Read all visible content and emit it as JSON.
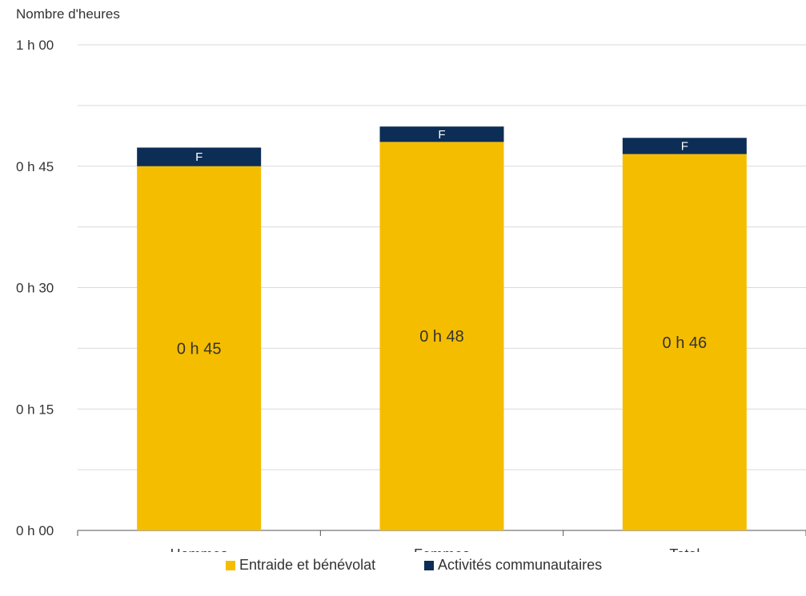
{
  "chart_data": {
    "type": "bar",
    "stacked": true,
    "ylabel": "Nombre d'heures",
    "xlabel": "",
    "categories": [
      "Hommes",
      "Femmes",
      "Total"
    ],
    "yticks": [
      {
        "value": 0,
        "label": "0 h 00"
      },
      {
        "value": 15,
        "label": "0 h 15"
      },
      {
        "value": 30,
        "label": "0 h 30"
      },
      {
        "value": 45,
        "label": "0 h 45"
      },
      {
        "value": 60,
        "label": "1 h 00"
      }
    ],
    "ylim": [
      0,
      60
    ],
    "grid": true,
    "legend_position": "bottom",
    "series": [
      {
        "name": "Entraide et bénévolat",
        "color": "#f5bd00",
        "values": [
          45,
          48,
          46.5
        ],
        "labels": [
          "0 h 45",
          "0 h 48",
          "0 h 46"
        ]
      },
      {
        "name": "Activités communautaires",
        "color": "#0c2d55",
        "values": [
          2.3,
          1.9,
          2.0
        ],
        "labels": [
          "F",
          "F",
          "F"
        ]
      }
    ]
  }
}
